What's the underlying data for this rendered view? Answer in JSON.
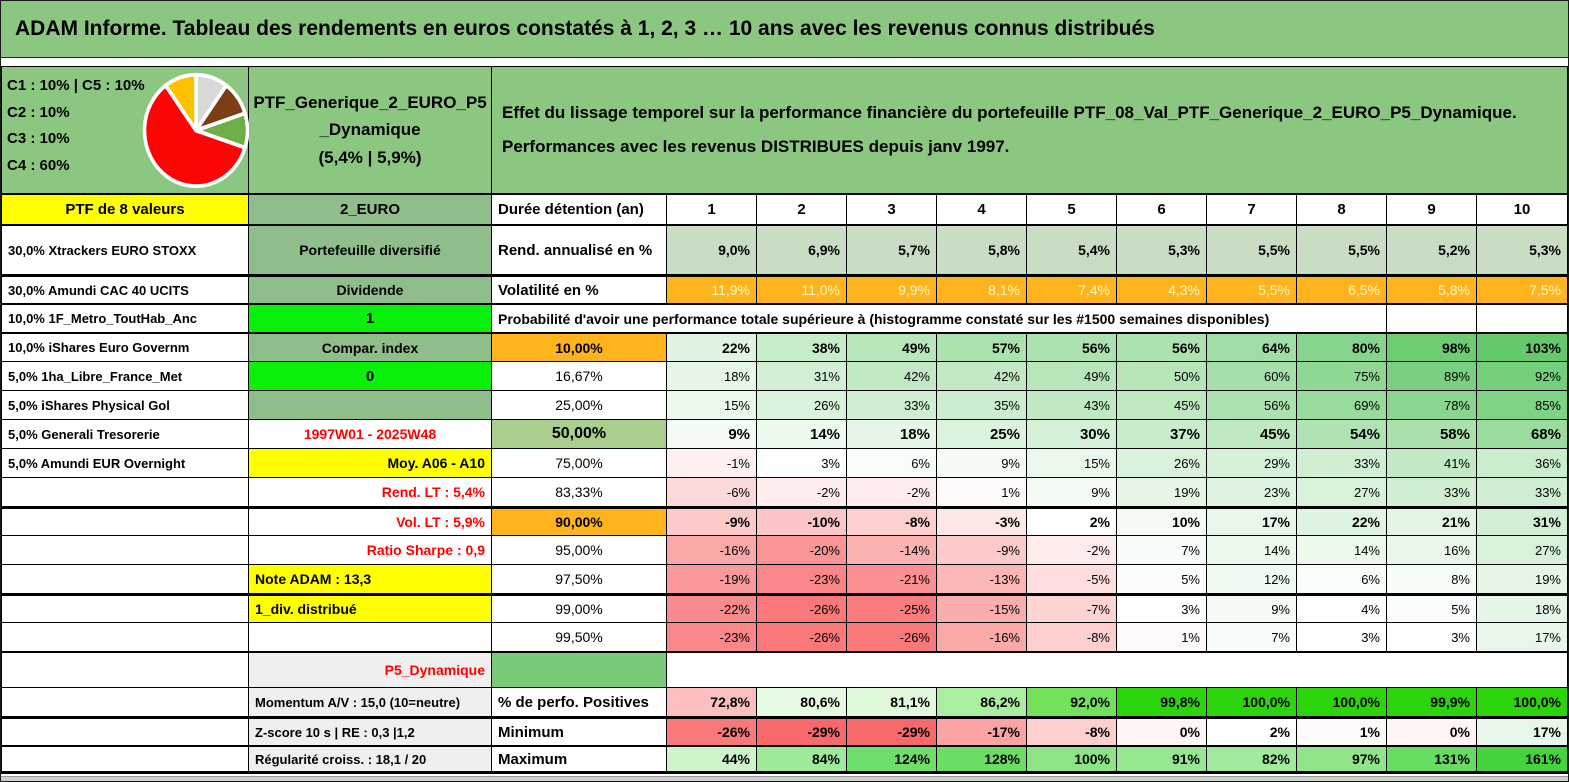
{
  "window": {
    "title": "ADAM Informe. Tableau des rendements en euros constatés à 1, 2, 3 … 10 ans avec les revenus connus distribués"
  },
  "header": {
    "composition_lines": [
      "C1 : 10% | C5 : 10%",
      "C2 : 10%",
      "C3 : 10%",
      "C4 : 60%"
    ],
    "pie": {
      "slices": [
        {
          "name": "slice-gray",
          "value": 10,
          "color": "#D9D9D9"
        },
        {
          "name": "slice-brown",
          "value": 10,
          "color": "#7B3E16"
        },
        {
          "name": "slice-green",
          "value": 10,
          "color": "#6FAD47"
        },
        {
          "name": "slice-red",
          "value": 60,
          "color": "#FE0505"
        },
        {
          "name": "slice-orange",
          "value": 10,
          "color": "#FFC000"
        }
      ]
    },
    "portfolio_name_lines": [
      "PTF_Generique_2_EURO_P5",
      "_Dynamique",
      "(5,4% | 5,9%)"
    ],
    "description_lines": [
      "Effet du lissage temporel sur la performance financière du portefeuille PTF_08_Val_PTF_Generique_2_EURO_P5_Dynamique.",
      "Performances avec les revenus DISTRIBUES depuis janv 1997."
    ]
  },
  "columns": {
    "ptf_label": "PTF de 8 valeurs",
    "holdings": [
      "30,0% Xtrackers EURO STOXX",
      "30,0% Amundi CAC 40 UCITS",
      "10,0% 1F_Metro_ToutHab_Anc",
      "10,0% iShares Euro Governm",
      "5,0% 1ha_Libre_France_Met",
      "5,0% iShares Physical Gol",
      "5,0% Generali Tresorerie",
      "5,0% Amundi EUR Overnight"
    ]
  },
  "mid_column": {
    "fund_type": "2_EURO",
    "style": "Portefeuille diversifié",
    "dividende": "Dividende",
    "flag_one": "1",
    "compar_index": "Compar. index",
    "flag_zero": "0",
    "period": "1997W01 - 2025W48",
    "moyenne": "Moy. A06 - A10",
    "rend_lt": "Rend. LT : 5,4%",
    "vol_lt": "Vol. LT : 5,9%",
    "sharpe": "Ratio Sharpe : 0,9",
    "note_adam": "Note ADAM : 13,3",
    "div_distribue": "1_div. distribué",
    "p5": "P5_Dynamique",
    "momentum": "Momentum A/V : 15,0 (10=neutre)",
    "zscore": "Z-score 10 s | RE : 0,3 |1,2",
    "regularite": "Régularité croiss. : 18,1 / 20"
  },
  "table": {
    "duration_header": "Durée détention (an)",
    "durations": [
      "1",
      "2",
      "3",
      "4",
      "5",
      "6",
      "7",
      "8",
      "9",
      "10"
    ],
    "rend": {
      "label": "Rend. annualisé en %",
      "values": [
        "9,0%",
        "6,9%",
        "5,7%",
        "5,8%",
        "5,4%",
        "5,3%",
        "5,5%",
        "5,5%",
        "5,2%",
        "5,3%"
      ]
    },
    "vol": {
      "label": "Volatilité en %",
      "values": [
        "11,9%",
        "11,0%",
        "9,9%",
        "8,1%",
        "7,4%",
        "4,3%",
        "5,5%",
        "6,5%",
        "5,8%",
        "7,5%"
      ]
    },
    "prob_caption": "Probabilité d'avoir une performance totale supérieure à (histogramme constaté sur les #1500 semaines disponibles)",
    "prob_rows": [
      {
        "label": "10,00%",
        "values": [
          "22%",
          "38%",
          "49%",
          "57%",
          "56%",
          "56%",
          "64%",
          "80%",
          "98%",
          "103%"
        ]
      },
      {
        "label": "16,67%",
        "values": [
          "18%",
          "31%",
          "42%",
          "42%",
          "49%",
          "50%",
          "60%",
          "75%",
          "89%",
          "92%"
        ]
      },
      {
        "label": "25,00%",
        "values": [
          "15%",
          "26%",
          "33%",
          "35%",
          "43%",
          "45%",
          "56%",
          "69%",
          "78%",
          "85%"
        ]
      },
      {
        "label": "50,00%",
        "values": [
          "9%",
          "14%",
          "18%",
          "25%",
          "30%",
          "37%",
          "45%",
          "54%",
          "58%",
          "68%"
        ]
      },
      {
        "label": "75,00%",
        "values": [
          "-1%",
          "3%",
          "6%",
          "9%",
          "15%",
          "26%",
          "29%",
          "33%",
          "41%",
          "36%"
        ]
      },
      {
        "label": "83,33%",
        "values": [
          "-6%",
          "-2%",
          "-2%",
          "1%",
          "9%",
          "19%",
          "23%",
          "27%",
          "33%",
          "33%"
        ]
      },
      {
        "label": "90,00%",
        "values": [
          "-9%",
          "-10%",
          "-8%",
          "-3%",
          "2%",
          "10%",
          "17%",
          "22%",
          "21%",
          "31%"
        ]
      },
      {
        "label": "95,00%",
        "values": [
          "-16%",
          "-20%",
          "-14%",
          "-9%",
          "-2%",
          "7%",
          "14%",
          "14%",
          "16%",
          "27%"
        ]
      },
      {
        "label": "97,50%",
        "values": [
          "-19%",
          "-23%",
          "-21%",
          "-13%",
          "-5%",
          "5%",
          "12%",
          "6%",
          "8%",
          "19%"
        ]
      },
      {
        "label": "99,00%",
        "values": [
          "-22%",
          "-26%",
          "-25%",
          "-15%",
          "-7%",
          "3%",
          "9%",
          "4%",
          "5%",
          "18%"
        ]
      },
      {
        "label": "99,50%",
        "values": [
          "-23%",
          "-26%",
          "-26%",
          "-16%",
          "-8%",
          "1%",
          "7%",
          "3%",
          "3%",
          "17%"
        ]
      }
    ],
    "perfo": {
      "label": "% de perfo. Positives",
      "values": [
        "72,8%",
        "80,6%",
        "81,1%",
        "86,2%",
        "92,0%",
        "99,8%",
        "100,0%",
        "100,0%",
        "99,9%",
        "100,0%"
      ]
    },
    "minimum": {
      "label": "Minimum",
      "values": [
        "-26%",
        "-29%",
        "-29%",
        "-17%",
        "-8%",
        "0%",
        "2%",
        "1%",
        "0%",
        "17%"
      ]
    },
    "maximum": {
      "label": "Maximum",
      "values": [
        "44%",
        "84%",
        "124%",
        "128%",
        "100%",
        "91%",
        "82%",
        "97%",
        "131%",
        "161%"
      ]
    }
  },
  "colors": {
    "header_green": "#8BC781",
    "cell_green": "#8FBE8A",
    "vivid_green": "#0BF00B",
    "orange": "#FFB41E",
    "olive": "#A9CE8E",
    "sage": "#C9DCC4",
    "yellow": "#FFFF00",
    "red_text": "#FF0000",
    "scale_red": "#F8696B",
    "scale_green": "#63C96B",
    "scale_bright_green": "#2BD40B"
  }
}
